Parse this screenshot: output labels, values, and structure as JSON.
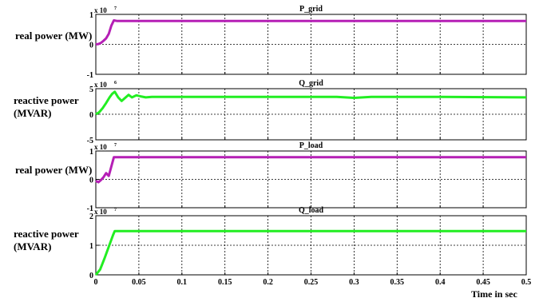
{
  "xlabel": "Time in sec",
  "x_ticks": [
    0,
    0.05,
    0.1,
    0.15,
    0.2,
    0.25,
    0.3,
    0.35,
    0.4,
    0.45,
    0.5
  ],
  "x_tick_labels": [
    "0",
    "0.05",
    "0.1",
    "0.15",
    "0.2",
    "0.25",
    "0.3",
    "0.35",
    "0.4",
    "0.45",
    "0.5"
  ],
  "chart_data": [
    {
      "type": "line",
      "title": "P_grid",
      "ylabel": "real power (MW)",
      "multiplier": "x 10",
      "exponent": "7",
      "xlim": [
        0,
        0.5
      ],
      "ylim": [
        -1,
        1
      ],
      "yticks": [
        "-1",
        "0",
        "1"
      ],
      "color": "#b51fb5",
      "grid": true,
      "series": [
        {
          "x": [
            0,
            0.003,
            0.006,
            0.009,
            0.012,
            0.015,
            0.018,
            0.021,
            0.025,
            0.5
          ],
          "y": [
            0,
            0.01,
            0.05,
            0.12,
            0.2,
            0.35,
            0.62,
            0.8,
            0.78,
            0.78
          ]
        }
      ]
    },
    {
      "type": "line",
      "title": "Q_grid",
      "ylabel": "reactive power (MVAR)",
      "multiplier": "x 10",
      "exponent": "6",
      "xlim": [
        0,
        0.5
      ],
      "ylim": [
        -5,
        5
      ],
      "yticks": [
        "-5",
        "0",
        "5"
      ],
      "color": "#22ee22",
      "grid": true,
      "series": [
        {
          "x": [
            0,
            0.004,
            0.008,
            0.012,
            0.016,
            0.019,
            0.022,
            0.026,
            0.03,
            0.034,
            0.038,
            0.042,
            0.047,
            0.052,
            0.058,
            0.065,
            0.1,
            0.2,
            0.28,
            0.3,
            0.32,
            0.4,
            0.5
          ],
          "y": [
            0,
            0.4,
            1.2,
            2.2,
            3.3,
            4.0,
            4.4,
            3.3,
            2.6,
            3.2,
            3.8,
            3.3,
            3.7,
            3.5,
            3.3,
            3.4,
            3.4,
            3.4,
            3.4,
            3.2,
            3.4,
            3.4,
            3.3
          ]
        }
      ]
    },
    {
      "type": "line",
      "title": "P_load",
      "ylabel": "real power (MW)",
      "multiplier": "x 10",
      "exponent": "7",
      "xlim": [
        0,
        0.5
      ],
      "ylim": [
        -1,
        1
      ],
      "yticks": [
        "-1",
        "0",
        "1"
      ],
      "color": "#b51fb5",
      "grid": true,
      "series": [
        {
          "x": [
            0,
            0.003,
            0.006,
            0.009,
            0.012,
            0.015,
            0.018,
            0.021,
            0.025,
            0.5
          ],
          "y": [
            -0.05,
            -0.1,
            -0.02,
            0.08,
            0.22,
            0.12,
            0.45,
            0.78,
            0.78,
            0.78
          ]
        }
      ]
    },
    {
      "type": "line",
      "title": "Q_load",
      "ylabel": "reactive power (MVAR)",
      "multiplier": "x 10",
      "exponent": "7",
      "xlim": [
        0,
        0.5
      ],
      "ylim": [
        0,
        2
      ],
      "yticks": [
        "0",
        "1",
        "2"
      ],
      "color": "#22ee22",
      "grid": true,
      "series": [
        {
          "x": [
            0,
            0.005,
            0.01,
            0.015,
            0.02,
            0.022,
            0.5
          ],
          "y": [
            0,
            0.18,
            0.55,
            0.95,
            1.35,
            1.48,
            1.48
          ]
        }
      ]
    }
  ]
}
